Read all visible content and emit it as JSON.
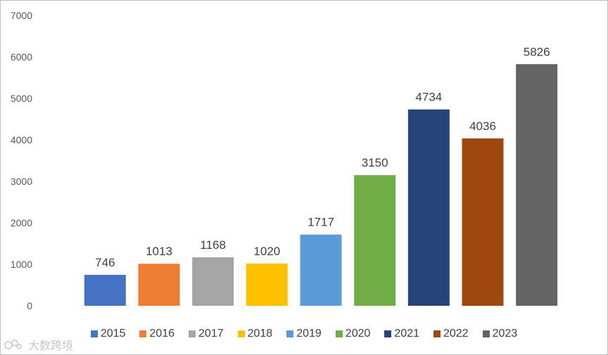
{
  "chart_data": {
    "type": "bar",
    "title": "",
    "xlabel": "",
    "ylabel": "",
    "categories": [
      "2015",
      "2016",
      "2017",
      "2018",
      "2019",
      "2020",
      "2021",
      "2022",
      "2023"
    ],
    "values": [
      746,
      1013,
      1168,
      1020,
      1717,
      3150,
      4734,
      4036,
      5826
    ],
    "colors": [
      "#4472c4",
      "#ed7d31",
      "#a5a5a5",
      "#ffc000",
      "#5b9bd5",
      "#70ad47",
      "#264478",
      "#9e480e",
      "#636363"
    ],
    "ylim": [
      0,
      7000
    ],
    "yticks": [
      "0",
      "1000",
      "2000",
      "3000",
      "4000",
      "5000",
      "6000",
      "7000"
    ],
    "data_labels": [
      "746",
      "1013",
      "1168",
      "1020",
      "1717",
      "3150",
      "4734",
      "4036",
      "5826"
    ],
    "legend": [
      "2015",
      "2016",
      "2017",
      "2018",
      "2019",
      "2020",
      "2021",
      "2022",
      "2023"
    ],
    "legend_position": "bottom",
    "grid": false
  },
  "watermark": {
    "text": "大数跨境",
    "icon": "logo-icon"
  }
}
